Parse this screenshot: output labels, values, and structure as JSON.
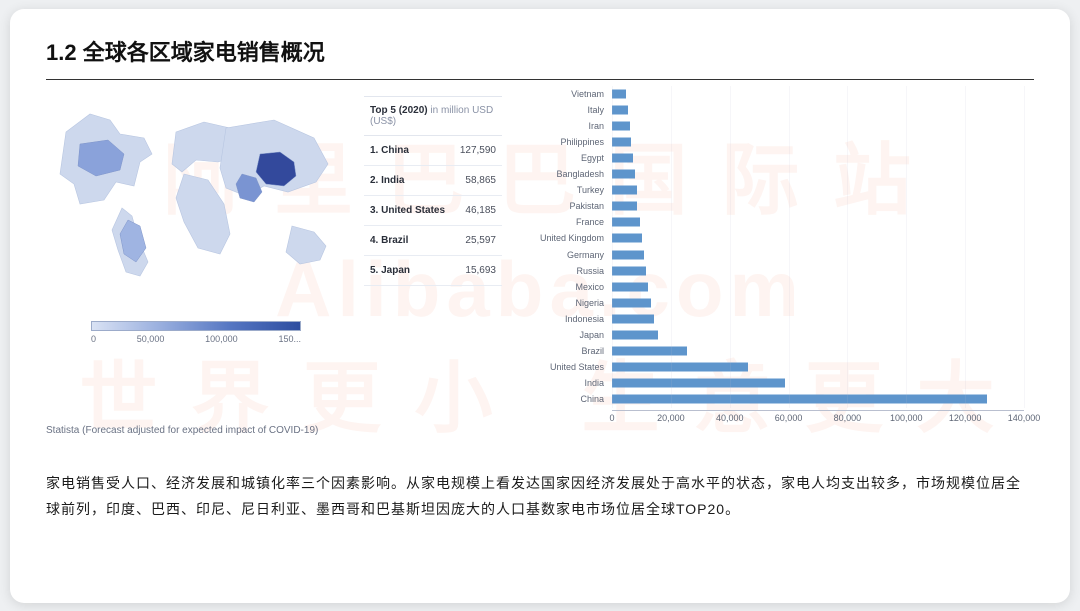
{
  "title": "1.2 全球各区域家电销售概况",
  "watermark_lines": "阿 里 巴 巴 国 际 站\nAlibaba.com\n世 界 更 小   生 意 更 大",
  "map": {
    "legend_ticks": [
      "0",
      "50,000",
      "100,000",
      "150..."
    ],
    "gradient_colors": {
      "low": "#d9e2f4",
      "mid1": "#98aede",
      "mid2": "#5576c2",
      "high": "#2d4da0"
    }
  },
  "source_note": "Statista (Forecast adjusted for expected impact of COVID-19)",
  "top5": {
    "header_bold": "Top 5 (2020)",
    "header_unit": " in million USD (US$)",
    "rows": [
      {
        "rank": "1. China",
        "value": "127,590"
      },
      {
        "rank": "2. India",
        "value": "58,865"
      },
      {
        "rank": "3. United States",
        "value": "46,185"
      },
      {
        "rank": "4. Brazil",
        "value": "25,597"
      },
      {
        "rank": "5. Japan",
        "value": "15,693"
      }
    ]
  },
  "barchart": {
    "type": "bar-horizontal",
    "bar_color": "#5e95cc",
    "background_color": "#ffffff",
    "grid_color": "#b9bfcf",
    "label_fontsize": 9,
    "label_color": "#5e6676",
    "xlim": [
      0,
      140000
    ],
    "xtick_step": 20000,
    "xtick_labels": [
      "0",
      "20,000",
      "40,000",
      "60,000",
      "80,000",
      "100,000",
      "120,000",
      "140,000"
    ],
    "categories_top_to_bottom": [
      "Vietnam",
      "Italy",
      "Iran",
      "Philippines",
      "Egypt",
      "Bangladesh",
      "Turkey",
      "Pakistan",
      "France",
      "United Kingdom",
      "Germany",
      "Russia",
      "Mexico",
      "Nigeria",
      "Indonesia",
      "Japan",
      "Brazil",
      "United States",
      "India",
      "China"
    ],
    "values_top_to_bottom": [
      4800,
      5500,
      6100,
      6600,
      7200,
      7800,
      8400,
      8600,
      9500,
      10200,
      11000,
      11700,
      12400,
      13200,
      14200,
      15693,
      25597,
      46185,
      58865,
      127590
    ]
  },
  "footer": "家电销售受人口、经济发展和城镇化率三个因素影响。从家电规模上看发达国家因经济发展处于高水平的状态，家电人均支出较多，市场规模位居全球前列，印度、巴西、印尼、尼日利亚、墨西哥和巴基斯坦因庞大的人口基数家电市场位居全球TOP20。"
}
